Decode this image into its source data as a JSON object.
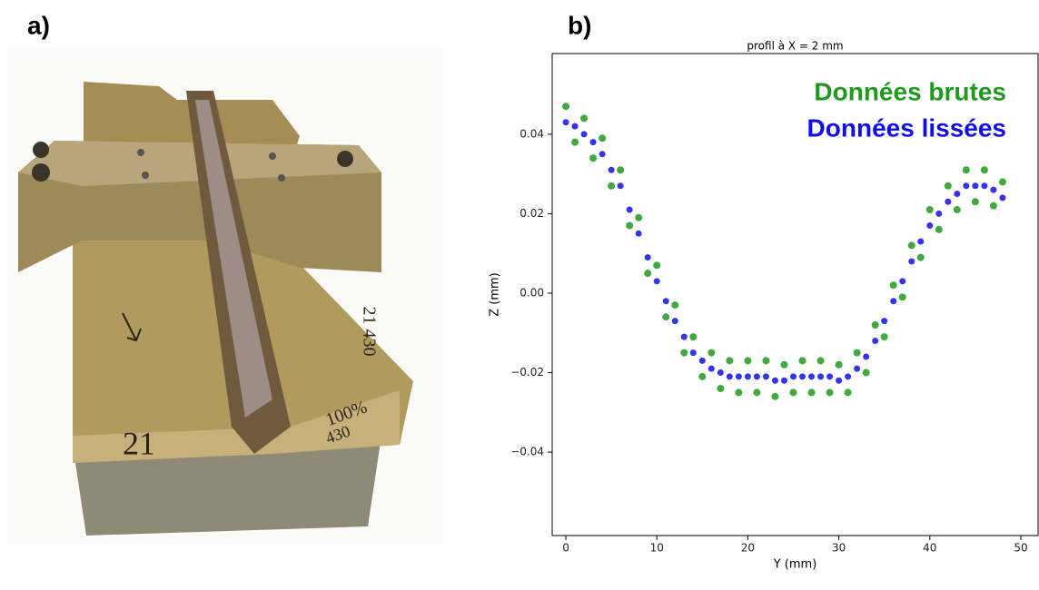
{
  "panels": {
    "a": "a)",
    "b": "b)"
  },
  "photo": {
    "labels": [
      "21",
      "100%",
      "430",
      "21 430"
    ]
  },
  "chart_data": {
    "type": "scatter",
    "title": "profil à X = 2 mm",
    "xlabel": "Y (mm)",
    "ylabel": "Z (mm)",
    "x": [
      0,
      1,
      2,
      3,
      4,
      5,
      6,
      7,
      8,
      9,
      10,
      11,
      12,
      13,
      14,
      15,
      16,
      17,
      18,
      19,
      20,
      21,
      22,
      23,
      24,
      25,
      26,
      27,
      28,
      29,
      30,
      31,
      32,
      33,
      34,
      35,
      36,
      37,
      38,
      39,
      40,
      41,
      42,
      43,
      44,
      45,
      46,
      47,
      48
    ],
    "series": [
      {
        "name": "Données brutes",
        "color": "#1f9a1f",
        "values": [
          0.047,
          0.038,
          0.044,
          0.034,
          0.039,
          0.027,
          0.031,
          0.017,
          0.019,
          0.005,
          0.007,
          -0.006,
          -0.003,
          -0.015,
          -0.011,
          -0.021,
          -0.015,
          -0.024,
          -0.017,
          -0.025,
          -0.017,
          -0.025,
          -0.017,
          -0.026,
          -0.018,
          -0.025,
          -0.017,
          -0.025,
          -0.017,
          -0.025,
          -0.018,
          -0.025,
          -0.015,
          -0.02,
          -0.008,
          -0.011,
          0.002,
          -0.001,
          0.012,
          0.009,
          0.021,
          0.016,
          0.027,
          0.021,
          0.031,
          0.023,
          0.031,
          0.022,
          0.028
        ]
      },
      {
        "name": "Données lissées",
        "color": "#1010e6",
        "values": [
          0.043,
          0.042,
          0.04,
          0.038,
          0.035,
          0.031,
          0.027,
          0.021,
          0.015,
          0.009,
          0.003,
          -0.002,
          -0.007,
          -0.011,
          -0.015,
          -0.017,
          -0.019,
          -0.02,
          -0.021,
          -0.021,
          -0.021,
          -0.021,
          -0.021,
          -0.022,
          -0.022,
          -0.021,
          -0.021,
          -0.021,
          -0.021,
          -0.021,
          -0.022,
          -0.021,
          -0.019,
          -0.016,
          -0.012,
          -0.007,
          -0.002,
          0.003,
          0.008,
          0.013,
          0.017,
          0.02,
          0.023,
          0.025,
          0.027,
          0.027,
          0.027,
          0.026,
          0.024
        ]
      }
    ],
    "xlim": [
      -1.5,
      51.9
    ],
    "xticks": [
      0,
      10,
      20,
      30,
      40,
      50
    ],
    "ylim": [
      -0.061,
      0.0603
    ],
    "yticks": [
      {
        "value": -0.04,
        "label": "−0.04"
      },
      {
        "value": -0.02,
        "label": "−0.02"
      },
      {
        "value": 0,
        "label": "0.00"
      },
      0.02,
      0.04
    ],
    "legend": "upper right"
  }
}
